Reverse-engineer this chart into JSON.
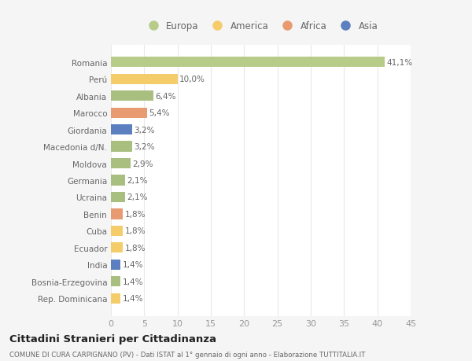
{
  "countries": [
    "Rep. Dominicana",
    "Bosnia-Erzegovina",
    "India",
    "Ecuador",
    "Cuba",
    "Benin",
    "Ucraina",
    "Germania",
    "Moldova",
    "Macedonia d/N.",
    "Giordania",
    "Marocco",
    "Albania",
    "Perú",
    "Romania"
  ],
  "values": [
    1.4,
    1.4,
    1.4,
    1.8,
    1.8,
    1.8,
    2.1,
    2.1,
    2.9,
    3.2,
    3.2,
    5.4,
    6.4,
    10.0,
    41.1
  ],
  "labels": [
    "1,4%",
    "1,4%",
    "1,4%",
    "1,8%",
    "1,8%",
    "1,8%",
    "2,1%",
    "2,1%",
    "2,9%",
    "3,2%",
    "3,2%",
    "5,4%",
    "6,4%",
    "10,0%",
    "41,1%"
  ],
  "colors": [
    "#f5cc6a",
    "#a8bf80",
    "#5b7fbf",
    "#f5cc6a",
    "#f5cc6a",
    "#e89a70",
    "#a8bf80",
    "#a8bf80",
    "#a8bf80",
    "#a8bf80",
    "#5b7fbf",
    "#e89a70",
    "#a8bf80",
    "#f5cc6a",
    "#b8cc8a"
  ],
  "legend_labels": [
    "Europa",
    "America",
    "Africa",
    "Asia"
  ],
  "legend_colors": [
    "#b8cc8a",
    "#f5cc6a",
    "#e89a70",
    "#5b7fbf"
  ],
  "xlim": [
    0,
    45
  ],
  "xticks": [
    0,
    5,
    10,
    15,
    20,
    25,
    30,
    35,
    40,
    45
  ],
  "title": "Cittadini Stranieri per Cittadinanza",
  "subtitle": "COMUNE DI CURA CARPIGNANO (PV) - Dati ISTAT al 1° gennaio di ogni anno - Elaborazione TUTTITALIA.IT",
  "bg_color": "#f5f5f5",
  "plot_bg_color": "#ffffff",
  "grid_color": "#e8e8e8"
}
